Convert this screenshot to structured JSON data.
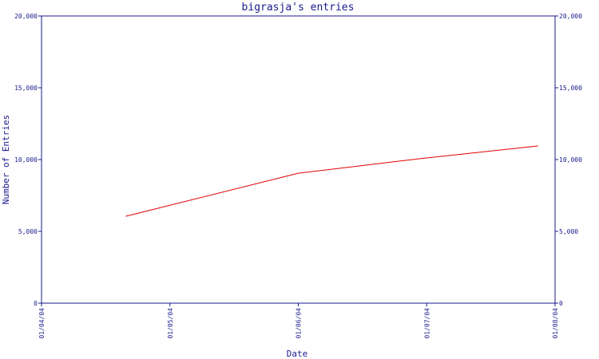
{
  "chart_data": {
    "type": "line",
    "title": "bigrasja's entries",
    "xlabel": "Date",
    "ylabel": "Number of Entries",
    "x_ticks": [
      "01/04/04",
      "01/05/04",
      "01/06/04",
      "01/07/04",
      "01/08/04"
    ],
    "y_ticks": [
      "0",
      "5,000",
      "10,000",
      "15,000",
      "20,000"
    ],
    "y_tick_values": [
      0,
      5000,
      10000,
      15000,
      20000
    ],
    "ylim": [
      0,
      20000
    ],
    "xlim": [
      "2004-04-01",
      "2004-08-01"
    ],
    "grid": false,
    "series": [
      {
        "x": [
          "2004-04-21",
          "2004-06-01",
          "2004-07-01",
          "2004-07-28"
        ],
        "y": [
          6050,
          9050,
          10100,
          10950
        ]
      }
    ],
    "colors": {
      "axis": "#1a1a8c",
      "series": "#e00000"
    }
  }
}
